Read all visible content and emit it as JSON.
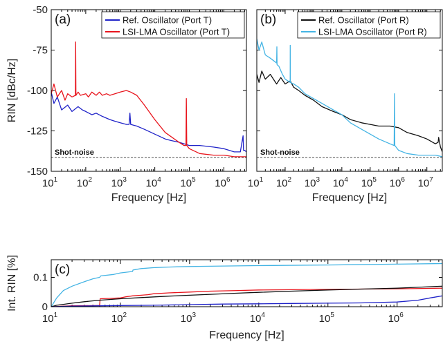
{
  "chart_data": [
    {
      "panel_label": "(a)",
      "type": "line",
      "xscale": "log",
      "xlim": [
        10,
        4500000
      ],
      "ylim": [
        -150,
        -50
      ],
      "xlabel": "Frequency [Hz]",
      "ylabel": "RIN [dBc/Hz]",
      "yticks": [
        -150,
        -125,
        -100,
        -75,
        -50
      ],
      "ytick_labels": [
        "-150",
        "-125",
        "-100",
        "-75",
        "-50"
      ],
      "xticks": [
        10,
        100,
        1000,
        10000,
        100000,
        1000000
      ],
      "xtick_labels": [
        [
          "10",
          "1"
        ],
        [
          "10",
          "2"
        ],
        [
          "10",
          "3"
        ],
        [
          "10",
          "4"
        ],
        [
          "10",
          "5"
        ],
        [
          "10",
          "6"
        ]
      ],
      "annotation": "Shot-noise",
      "shot_noise_level": -141.5,
      "legend_position": "top-right",
      "series": [
        {
          "name": "Ref. Oscillator (Port T)",
          "color": "#1f22c8",
          "x": [
            10,
            12,
            15,
            20,
            30,
            40,
            60,
            80,
            100,
            150,
            200,
            300,
            500,
            700,
            1000,
            1500,
            1800,
            1900,
            2000,
            3000,
            5000,
            10000,
            20000,
            30000,
            50000,
            100000,
            200000,
            500000,
            1000000,
            2000000,
            3000000,
            3600000,
            3700000,
            4000000,
            4500000
          ],
          "y": [
            -101,
            -108,
            -104,
            -112,
            -109,
            -113,
            -110,
            -112,
            -113,
            -115,
            -114,
            -116,
            -118,
            -119,
            -120,
            -121,
            -121,
            -114,
            -121,
            -122,
            -124,
            -127,
            -130,
            -131,
            -132,
            -134,
            -134,
            -135,
            -136,
            -138,
            -138,
            -128,
            -137,
            -137,
            -138
          ]
        },
        {
          "name": "LSI-LMA Oscillator (Port T)",
          "color": "#e8141c",
          "x": [
            10,
            12,
            15,
            20,
            25,
            30,
            40,
            50,
            51,
            52,
            60,
            70,
            100,
            120,
            150,
            200,
            250,
            300,
            400,
            500,
            700,
            1000,
            1500,
            2000,
            3000,
            5000,
            10000,
            20000,
            50000,
            70000,
            80000,
            82000,
            84000,
            100000,
            200000,
            500000,
            1000000,
            2000000,
            4500000
          ],
          "y": [
            -102,
            -96,
            -104,
            -100,
            -106,
            -102,
            -104,
            -103,
            -70,
            -103,
            -101,
            -103,
            -102,
            -104,
            -101,
            -103,
            -101,
            -103,
            -102,
            -103,
            -102,
            -101,
            -100,
            -101,
            -103,
            -109,
            -118,
            -126,
            -132,
            -134,
            -134,
            -105,
            -134,
            -136,
            -139,
            -140,
            -140,
            -141,
            -141
          ]
        }
      ]
    },
    {
      "panel_label": "(b)",
      "type": "line",
      "xscale": "log",
      "xlim": [
        10,
        35000000
      ],
      "ylim": [
        -150,
        -50
      ],
      "xlabel": "Frequency [Hz]",
      "ylabel": "",
      "xticks": [
        10,
        100,
        1000,
        10000,
        100000,
        1000000,
        10000000
      ],
      "xtick_labels": [
        [
          "10",
          "1"
        ],
        [
          "10",
          "2"
        ],
        [
          "10",
          "3"
        ],
        [
          "10",
          "4"
        ],
        [
          "10",
          "5"
        ],
        [
          "10",
          "6"
        ],
        [
          "10",
          "7"
        ]
      ],
      "annotation": "Shot-noise",
      "shot_noise_level": -141.5,
      "legend_position": "top-right",
      "series": [
        {
          "name": "Ref. Oscillator (Port R)",
          "color": "#111111",
          "x": [
            10,
            12,
            15,
            20,
            30,
            50,
            70,
            100,
            150,
            200,
            300,
            500,
            1000,
            2000,
            5000,
            10000,
            20000,
            50000,
            100000,
            200000,
            500000,
            1000000,
            2000000,
            5000000,
            10000000,
            20000000,
            25000000,
            26000000,
            30000000,
            35000000
          ],
          "y": [
            -90,
            -95,
            -88,
            -93,
            -90,
            -96,
            -92,
            -96,
            -94,
            -98,
            -100,
            -103,
            -106,
            -110,
            -113,
            -115,
            -118,
            -120,
            -121,
            -122,
            -122,
            -123,
            -126,
            -128,
            -130,
            -133,
            -132,
            -129,
            -135,
            -138
          ]
        },
        {
          "name": "LSI-LMA Oscillator (Port R)",
          "color": "#44b4e4",
          "x": [
            10,
            12,
            15,
            20,
            30,
            50,
            51,
            52,
            60,
            80,
            100,
            150,
            151,
            152,
            200,
            300,
            500,
            1000,
            2000,
            5000,
            10000,
            20000,
            50000,
            100000,
            200000,
            500000,
            700000,
            720000,
            740000,
            1000000,
            2000000,
            5000000,
            10000000,
            20000000,
            35000000
          ],
          "y": [
            -68,
            -75,
            -70,
            -78,
            -80,
            -83,
            -73,
            -84,
            -85,
            -90,
            -93,
            -95,
            -72,
            -95,
            -96,
            -98,
            -102,
            -105,
            -108,
            -112,
            -115,
            -120,
            -124,
            -127,
            -130,
            -133,
            -134,
            -102,
            -134,
            -137,
            -139,
            -140,
            -140,
            -140,
            -141
          ]
        }
      ]
    },
    {
      "panel_label": "(c)",
      "type": "line",
      "xscale": "log",
      "xlim": [
        10,
        4500000
      ],
      "ylim": [
        0,
        0.16
      ],
      "xlabel": "Frequency [Hz]",
      "ylabel": "Int. RIN [%]",
      "yticks": [
        0,
        0.1
      ],
      "ytick_labels": [
        "0",
        "0.1"
      ],
      "xticks": [
        10,
        100,
        1000,
        10000,
        100000,
        1000000
      ],
      "xtick_labels": [
        [
          "10",
          "1"
        ],
        [
          "10",
          "2"
        ],
        [
          "10",
          "3"
        ],
        [
          "10",
          "4"
        ],
        [
          "10",
          "5"
        ],
        [
          "10",
          "6"
        ]
      ],
      "series": [
        {
          "color": "#44b4e4",
          "x": [
            10,
            12,
            15,
            20,
            30,
            40,
            50,
            52,
            80,
            100,
            150,
            152,
            200,
            300,
            500,
            1000,
            2000,
            5000,
            10000,
            100000,
            1000000,
            4500000
          ],
          "y": [
            0,
            0.03,
            0.055,
            0.07,
            0.085,
            0.095,
            0.1,
            0.105,
            0.11,
            0.115,
            0.12,
            0.125,
            0.13,
            0.133,
            0.135,
            0.137,
            0.138,
            0.139,
            0.14,
            0.142,
            0.145,
            0.147
          ]
        },
        {
          "color": "#e8141c",
          "x": [
            10,
            20,
            49,
            50,
            51,
            100,
            120,
            150,
            200,
            250,
            300,
            500,
            1000,
            2000,
            5000,
            10000,
            30000,
            100000,
            300000,
            1000000,
            4500000
          ],
          "y": [
            0,
            0.003,
            0.004,
            0.004,
            0.027,
            0.03,
            0.034,
            0.037,
            0.039,
            0.041,
            0.044,
            0.047,
            0.05,
            0.053,
            0.055,
            0.057,
            0.058,
            0.059,
            0.06,
            0.061,
            0.063
          ]
        },
        {
          "color": "#111111",
          "x": [
            10,
            12,
            15,
            20,
            30,
            50,
            100,
            200,
            500,
            1000,
            2000,
            5000,
            10000,
            30000,
            100000,
            300000,
            1000000,
            2000000,
            4500000
          ],
          "y": [
            0,
            0.005,
            0.008,
            0.012,
            0.017,
            0.022,
            0.027,
            0.031,
            0.036,
            0.039,
            0.042,
            0.046,
            0.049,
            0.053,
            0.057,
            0.06,
            0.063,
            0.066,
            0.07
          ]
        },
        {
          "color": "#1f22c8",
          "x": [
            10,
            20,
            50,
            100,
            300,
            1000,
            3000,
            10000,
            30000,
            100000,
            300000,
            1000000,
            2000000,
            3000000,
            4500000
          ],
          "y": [
            0,
            0.002,
            0.003,
            0.004,
            0.005,
            0.007,
            0.009,
            0.01,
            0.011,
            0.012,
            0.013,
            0.016,
            0.022,
            0.03,
            0.037
          ]
        }
      ]
    }
  ]
}
